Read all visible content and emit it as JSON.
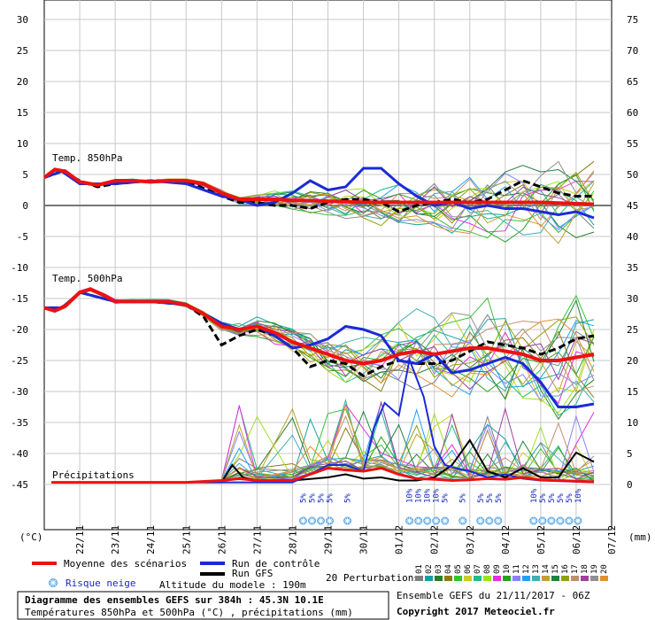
{
  "chart_data": {
    "type": "line",
    "left_axis_label": "(°C)",
    "right_axis_label": "(mm)",
    "left_ticks": [
      30,
      25,
      20,
      15,
      10,
      5,
      0,
      -5,
      -10,
      -15,
      -20,
      -25,
      -30,
      -35,
      -40,
      -45
    ],
    "right_ticks": [
      75,
      70,
      65,
      60,
      55,
      50,
      45,
      40,
      35,
      30,
      25,
      20,
      15,
      10,
      5,
      0
    ],
    "ylim_temp": [
      -45,
      30
    ],
    "ylim_precip_mm": [
      0,
      75
    ],
    "x_dates": [
      "22/11",
      "23/11",
      "24/11",
      "25/11",
      "26/11",
      "27/11",
      "28/11",
      "29/11",
      "30/11",
      "01/12",
      "02/12",
      "03/12",
      "04/12",
      "05/12",
      "06/12",
      "07/12"
    ],
    "panel_labels": {
      "t850": "Temp. 850hPa",
      "t500": "Temp. 500hPa",
      "precip": "Précipitations"
    },
    "snow_risk": [
      {
        "day": 7.3,
        "text": "5%"
      },
      {
        "day": 7.55,
        "text": "5%"
      },
      {
        "day": 7.8,
        "text": "5%"
      },
      {
        "day": 8.05,
        "text": "5%"
      },
      {
        "day": 8.55,
        "text": "5%"
      },
      {
        "day": 10.3,
        "text": "10%"
      },
      {
        "day": 10.55,
        "text": "10%"
      },
      {
        "day": 10.8,
        "text": "10%"
      },
      {
        "day": 11.05,
        "text": "10%"
      },
      {
        "day": 11.3,
        "text": "5%"
      },
      {
        "day": 11.8,
        "text": "5%"
      },
      {
        "day": 12.3,
        "text": "5%"
      },
      {
        "day": 12.55,
        "text": "5%"
      },
      {
        "day": 12.8,
        "text": "5%"
      },
      {
        "day": 13.8,
        "text": "10%"
      },
      {
        "day": 14.05,
        "text": "5%"
      },
      {
        "day": 14.3,
        "text": "5%"
      },
      {
        "day": 14.55,
        "text": "5%"
      },
      {
        "day": 14.8,
        "text": "5%"
      },
      {
        "day": 15.05,
        "text": "10%"
      }
    ],
    "series": [
      {
        "name": "Moyenne des scénarios",
        "color": "#ee1111",
        "t850": [
          [
            0,
            4.5
          ],
          [
            0.3,
            5.8
          ],
          [
            0.6,
            5.5
          ],
          [
            1,
            3.8
          ],
          [
            1.5,
            3.3
          ],
          [
            2,
            4
          ],
          [
            2.5,
            4
          ],
          [
            3,
            3.8
          ],
          [
            3.5,
            4
          ],
          [
            4,
            4
          ],
          [
            4.5,
            3.5
          ],
          [
            5,
            2
          ],
          [
            5.5,
            1
          ],
          [
            6,
            1
          ],
          [
            6.5,
            1
          ],
          [
            7,
            0.8
          ],
          [
            7.5,
            0.8
          ],
          [
            8,
            0.7
          ],
          [
            8.5,
            0.6
          ],
          [
            9,
            0.5
          ],
          [
            9.5,
            0.5
          ],
          [
            10,
            0.5
          ],
          [
            10.5,
            0.5
          ],
          [
            11,
            0.5
          ],
          [
            11.5,
            0.5
          ],
          [
            12,
            0.5
          ],
          [
            12.5,
            0.5
          ],
          [
            13,
            0.5
          ],
          [
            13.5,
            0.5
          ],
          [
            14,
            0.5
          ],
          [
            14.5,
            0.4
          ],
          [
            15,
            0.3
          ],
          [
            15.5,
            0.2
          ]
        ],
        "t500": [
          [
            0,
            -16.5
          ],
          [
            0.3,
            -17
          ],
          [
            0.6,
            -16.2
          ],
          [
            1,
            -14
          ],
          [
            1.3,
            -13.5
          ],
          [
            1.7,
            -14.5
          ],
          [
            2,
            -15.5
          ],
          [
            2.5,
            -15.5
          ],
          [
            3,
            -15.5
          ],
          [
            3.5,
            -15.5
          ],
          [
            4,
            -16
          ],
          [
            4.5,
            -17.5
          ],
          [
            5,
            -19.5
          ],
          [
            5.5,
            -20
          ],
          [
            6,
            -19.5
          ],
          [
            6.5,
            -20.5
          ],
          [
            7,
            -22
          ],
          [
            7.5,
            -23
          ],
          [
            8,
            -24
          ],
          [
            8.5,
            -25
          ],
          [
            9,
            -25.5
          ],
          [
            9.5,
            -25
          ],
          [
            10,
            -24
          ],
          [
            10.5,
            -23.5
          ],
          [
            11,
            -24
          ],
          [
            11.5,
            -23.5
          ],
          [
            12,
            -23
          ],
          [
            12.5,
            -23
          ],
          [
            13,
            -23.5
          ],
          [
            13.5,
            -24
          ],
          [
            14,
            -25
          ],
          [
            14.5,
            -25
          ],
          [
            15,
            -24.5
          ],
          [
            15.5,
            -24
          ]
        ],
        "precip": [
          [
            0.2,
            0.2
          ],
          [
            4,
            0.2
          ],
          [
            5,
            0.5
          ],
          [
            5.5,
            0.8
          ],
          [
            6,
            0.5
          ],
          [
            7,
            0.5
          ],
          [
            7.5,
            1.5
          ],
          [
            8,
            2.5
          ],
          [
            8.5,
            2.2
          ],
          [
            9,
            2
          ],
          [
            9.5,
            2.5
          ],
          [
            10,
            1.5
          ],
          [
            10.5,
            0.8
          ],
          [
            11,
            0.7
          ],
          [
            11.5,
            0.5
          ],
          [
            12,
            0.6
          ],
          [
            12.5,
            0.8
          ],
          [
            13,
            0.7
          ],
          [
            13.5,
            1
          ],
          [
            14,
            0.6
          ],
          [
            14.5,
            0.5
          ],
          [
            15,
            0.4
          ],
          [
            15.5,
            0.3
          ]
        ]
      },
      {
        "name": "Run de contrôle",
        "color": "#1a2bd6",
        "t850": [
          [
            0,
            4.5
          ],
          [
            0.5,
            5.5
          ],
          [
            1,
            3.5
          ],
          [
            2,
            3.5
          ],
          [
            3,
            4
          ],
          [
            4,
            3.5
          ],
          [
            5,
            1.5
          ],
          [
            5.5,
            1
          ],
          [
            6,
            0
          ],
          [
            6.5,
            0.5
          ],
          [
            7,
            2
          ],
          [
            7.5,
            4
          ],
          [
            8,
            2.5
          ],
          [
            8.5,
            3
          ],
          [
            9,
            6
          ],
          [
            9.5,
            6
          ],
          [
            10,
            3.5
          ],
          [
            10.5,
            1.5
          ],
          [
            11,
            0
          ],
          [
            11.5,
            0.5
          ],
          [
            12,
            -0.5
          ],
          [
            12.5,
            0
          ],
          [
            13,
            -0.5
          ],
          [
            13.5,
            -0.5
          ],
          [
            14,
            -1
          ],
          [
            14.5,
            -1.5
          ],
          [
            15,
            -1
          ],
          [
            15.5,
            -2
          ]
        ],
        "t500": [
          [
            0,
            -16.5
          ],
          [
            0.5,
            -16.5
          ],
          [
            1,
            -14
          ],
          [
            2,
            -15.5
          ],
          [
            3,
            -15.5
          ],
          [
            4,
            -16
          ],
          [
            5,
            -19
          ],
          [
            5.5,
            -20
          ],
          [
            6,
            -19.5
          ],
          [
            6.5,
            -21
          ],
          [
            7,
            -23
          ],
          [
            7.5,
            -22.5
          ],
          [
            8,
            -21.5
          ],
          [
            8.5,
            -19.5
          ],
          [
            9,
            -20
          ],
          [
            9.5,
            -21
          ],
          [
            10,
            -25
          ],
          [
            10.5,
            -25.5
          ],
          [
            11,
            -24
          ],
          [
            11.5,
            -27
          ],
          [
            12,
            -26.5
          ],
          [
            12.5,
            -25.5
          ],
          [
            13,
            -24.5
          ],
          [
            13.5,
            -25.5
          ],
          [
            14,
            -28.5
          ],
          [
            14.5,
            -32.5
          ],
          [
            15,
            -32.5
          ],
          [
            15.5,
            -32
          ]
        ],
        "precip": [
          [
            0.2,
            0.2
          ],
          [
            5,
            0.2
          ],
          [
            6,
            0.2
          ],
          [
            7,
            0.2
          ],
          [
            7.5,
            1.5
          ],
          [
            8,
            3
          ],
          [
            8.5,
            3
          ],
          [
            9,
            2
          ],
          [
            9.3,
            9
          ],
          [
            9.6,
            13
          ],
          [
            10,
            11
          ],
          [
            10.3,
            20
          ],
          [
            10.7,
            14
          ],
          [
            11,
            6
          ],
          [
            11.3,
            3
          ],
          [
            11.6,
            2.5
          ],
          [
            12,
            2
          ],
          [
            12.5,
            1
          ],
          [
            13,
            1.5
          ],
          [
            13.5,
            0.8
          ],
          [
            14,
            0.5
          ],
          [
            15,
            0.3
          ],
          [
            15.5,
            0.2
          ]
        ]
      },
      {
        "name": "Run GFS",
        "color": "#000000",
        "t850": [
          [
            0,
            4.5
          ],
          [
            0.5,
            5.5
          ],
          [
            1,
            4
          ],
          [
            1.5,
            3
          ],
          [
            2,
            3.5
          ],
          [
            3,
            4
          ],
          [
            4,
            4
          ],
          [
            5,
            1.5
          ],
          [
            5.5,
            0.5
          ],
          [
            6,
            0.5
          ],
          [
            6.5,
            0
          ],
          [
            7,
            0
          ],
          [
            7.5,
            -0.5
          ],
          [
            8,
            0.5
          ],
          [
            8.5,
            1
          ],
          [
            9,
            1
          ],
          [
            9.5,
            0.5
          ],
          [
            10,
            -1
          ],
          [
            10.5,
            0
          ],
          [
            11,
            0.5
          ],
          [
            11.5,
            1
          ],
          [
            12,
            0.5
          ],
          [
            12.5,
            1
          ],
          [
            13,
            2.5
          ],
          [
            13.5,
            4
          ],
          [
            14,
            3
          ],
          [
            14.5,
            2
          ],
          [
            15,
            1.5
          ],
          [
            15.5,
            1.5
          ]
        ],
        "t500": [
          [
            0,
            -16.5
          ],
          [
            0.5,
            -16.5
          ],
          [
            1,
            -14
          ],
          [
            2,
            -15.5
          ],
          [
            3,
            -15.5
          ],
          [
            4,
            -16
          ],
          [
            4.5,
            -18
          ],
          [
            5,
            -22.5
          ],
          [
            5.5,
            -21
          ],
          [
            6,
            -20
          ],
          [
            6.5,
            -21
          ],
          [
            7,
            -23
          ],
          [
            7.5,
            -26
          ],
          [
            8,
            -25
          ],
          [
            8.5,
            -25.5
          ],
          [
            9,
            -27.5
          ],
          [
            9.5,
            -26
          ],
          [
            10,
            -25
          ],
          [
            10.5,
            -25.5
          ],
          [
            11,
            -25.5
          ],
          [
            11.5,
            -25
          ],
          [
            12,
            -23.5
          ],
          [
            12.5,
            -22
          ],
          [
            13,
            -22.5
          ],
          [
            13.5,
            -23
          ],
          [
            14,
            -24
          ],
          [
            14.5,
            -23
          ],
          [
            15,
            -21.5
          ],
          [
            15.5,
            -21
          ]
        ],
        "precip": [
          [
            0.2,
            0.2
          ],
          [
            5,
            0.2
          ],
          [
            5.3,
            3
          ],
          [
            5.6,
            1
          ],
          [
            6,
            0.5
          ],
          [
            7,
            0.5
          ],
          [
            8,
            1
          ],
          [
            8.5,
            1.5
          ],
          [
            9,
            0.8
          ],
          [
            9.5,
            1
          ],
          [
            10,
            0.5
          ],
          [
            10.5,
            0.5
          ],
          [
            11,
            1
          ],
          [
            11.5,
            3
          ],
          [
            12,
            7
          ],
          [
            12.5,
            2
          ],
          [
            13,
            1
          ],
          [
            13.5,
            2.5
          ],
          [
            14,
            1
          ],
          [
            14.5,
            1
          ],
          [
            15,
            5
          ],
          [
            15.5,
            3.5
          ]
        ]
      }
    ],
    "perturbation_colors": [
      "#7f7f7f",
      "#18a0a0",
      "#2a7d2a",
      "#8c7a18",
      "#36c236",
      "#cccc22",
      "#22bb88",
      "#a0e020",
      "#e030e0",
      "#2aa020",
      "#8a80ff",
      "#20a0ff",
      "#40b0b0",
      "#c0a030",
      "#208040",
      "#90a010",
      "#c09070",
      "#a040a0",
      "#909090",
      "#e09030"
    ]
  },
  "legend": {
    "mean": "Moyenne des scénarios",
    "control": "Run de contrôle",
    "gfs": "Run GFS",
    "snow": "Risque neige",
    "altitude": "Altitude du modele : 190m",
    "perturbations": "20 Perturbations",
    "pert_numbers": [
      "01",
      "02",
      "03",
      "04",
      "05",
      "06",
      "07",
      "08",
      "09",
      "10",
      "11",
      "12",
      "13",
      "14",
      "15",
      "16",
      "17",
      "18",
      "19",
      "20"
    ]
  },
  "footer": {
    "title": "Diagramme des ensembles GEFS sur 384h : 45.3N 10.1E",
    "subtitle": "Températures 850hPa et 500hPa (°C) , précipitations (mm)",
    "ensemble": "Ensemble GEFS du 21/11/2017 - 06Z",
    "copyright": "Copyright 2017 Meteociel.fr"
  }
}
